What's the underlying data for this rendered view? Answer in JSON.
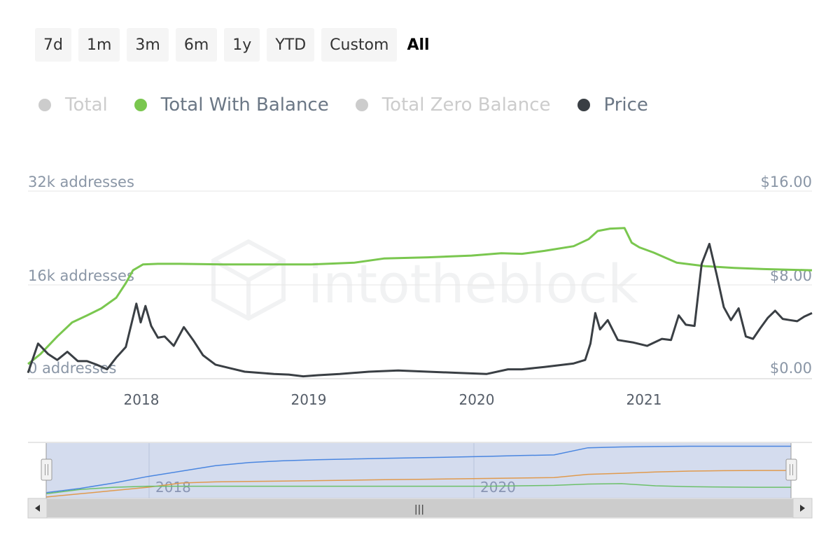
{
  "range_buttons": [
    "7d",
    "1m",
    "3m",
    "6m",
    "1y",
    "YTD",
    "Custom",
    "All"
  ],
  "active_range": "All",
  "legend": [
    {
      "label": "Total",
      "color": "#cccccc",
      "enabled": false
    },
    {
      "label": "Total With Balance",
      "color": "#7ac74f",
      "enabled": true
    },
    {
      "label": "Total Zero Balance",
      "color": "#cccccc",
      "enabled": false
    },
    {
      "label": "Price",
      "color": "#3a3f44",
      "enabled": true
    }
  ],
  "watermark": "intotheblock",
  "navigator": {
    "x_ticks": [
      "2018",
      "2020"
    ],
    "scroll_thumb": "|||"
  },
  "chart_data": {
    "type": "line",
    "title": "",
    "x_ticks": [
      "2018",
      "2019",
      "2020",
      "2021"
    ],
    "y_left": {
      "ticks": [
        "0 addresses",
        "16k addresses",
        "32k addresses"
      ],
      "range": [
        0,
        32000
      ]
    },
    "y_right": {
      "ticks": [
        "$0.00",
        "$8.00",
        "$16.00"
      ],
      "range": [
        0,
        16
      ]
    },
    "x_range": [
      "2017-05-20",
      "2021-11-10"
    ],
    "grid": true,
    "series": [
      {
        "name": "Total With Balance",
        "color": "#7ac74f",
        "axis": "left",
        "x": [
          "2017-05-20",
          "2017-06-15",
          "2017-07-20",
          "2017-08-20",
          "2017-09-20",
          "2017-10-20",
          "2017-11-20",
          "2017-12-10",
          "2017-12-25",
          "2018-01-15",
          "2018-02-15",
          "2018-04-01",
          "2018-07-01",
          "2018-10-01",
          "2019-01-01",
          "2019-04-01",
          "2019-06-01",
          "2019-09-01",
          "2019-12-01",
          "2020-02-01",
          "2020-03-15",
          "2020-05-01",
          "2020-07-01",
          "2020-08-01",
          "2020-08-20",
          "2020-09-15",
          "2020-10-15",
          "2020-10-30",
          "2020-11-15",
          "2020-12-15",
          "2021-02-01",
          "2021-04-01",
          "2021-06-01",
          "2021-08-01",
          "2021-11-10"
        ],
        "values": [
          2500,
          4200,
          7200,
          9600,
          10800,
          12000,
          13800,
          16300,
          18500,
          19500,
          19600,
          19600,
          19500,
          19500,
          19500,
          19800,
          20500,
          20700,
          21000,
          21400,
          21300,
          21800,
          22600,
          23800,
          25200,
          25600,
          25700,
          23200,
          22400,
          21500,
          19800,
          19200,
          18900,
          18700,
          18500
        ]
      },
      {
        "name": "Price",
        "color": "#3a3f44",
        "axis": "right",
        "x": [
          "2017-05-20",
          "2017-06-10",
          "2017-07-01",
          "2017-07-20",
          "2017-08-10",
          "2017-09-01",
          "2017-09-20",
          "2017-10-10",
          "2017-11-01",
          "2017-11-20",
          "2017-12-10",
          "2018-01-01",
          "2018-01-10",
          "2018-01-20",
          "2018-02-01",
          "2018-02-15",
          "2018-03-01",
          "2018-03-20",
          "2018-04-10",
          "2018-05-01",
          "2018-05-20",
          "2018-06-15",
          "2018-07-15",
          "2018-08-15",
          "2018-09-15",
          "2018-10-15",
          "2018-11-15",
          "2018-12-15",
          "2019-01-15",
          "2019-03-01",
          "2019-05-01",
          "2019-07-01",
          "2019-09-01",
          "2019-11-01",
          "2020-01-01",
          "2020-02-15",
          "2020-03-15",
          "2020-05-01",
          "2020-07-01",
          "2020-07-25",
          "2020-08-05",
          "2020-08-15",
          "2020-08-25",
          "2020-09-10",
          "2020-10-01",
          "2020-11-01",
          "2020-12-01",
          "2021-01-01",
          "2021-01-20",
          "2021-02-05",
          "2021-02-20",
          "2021-03-10",
          "2021-03-25",
          "2021-04-10",
          "2021-04-25",
          "2021-05-10",
          "2021-05-25",
          "2021-06-10",
          "2021-06-25",
          "2021-07-10",
          "2021-07-25",
          "2021-08-10",
          "2021-08-25",
          "2021-09-10",
          "2021-09-25",
          "2021-10-10",
          "2021-10-25",
          "2021-11-10"
        ],
        "values": [
          0.5,
          3.0,
          2.1,
          1.6,
          2.3,
          1.5,
          1.5,
          1.2,
          0.8,
          1.8,
          2.7,
          6.4,
          4.8,
          6.2,
          4.5,
          3.5,
          3.6,
          2.8,
          4.4,
          3.2,
          2.0,
          1.2,
          0.9,
          0.6,
          0.5,
          0.4,
          0.35,
          0.2,
          0.3,
          0.4,
          0.6,
          0.7,
          0.6,
          0.5,
          0.4,
          0.8,
          0.8,
          1.0,
          1.3,
          1.6,
          3.0,
          5.6,
          4.2,
          5.0,
          3.3,
          3.1,
          2.8,
          3.4,
          3.3,
          5.4,
          4.6,
          4.5,
          9.8,
          11.5,
          8.9,
          6.1,
          5.0,
          6.0,
          3.6,
          3.4,
          4.3,
          5.2,
          5.8,
          5.1,
          5.0,
          4.9,
          5.3,
          5.6
        ]
      }
    ]
  },
  "navigator_data": {
    "series": [
      {
        "name": "Total",
        "color": "#4a86e0",
        "values": [
          2000,
          4000,
          6500,
          9500,
          12000,
          14500,
          16000,
          16800,
          17300,
          17600,
          17900,
          18200,
          18500,
          18800,
          19200,
          19500,
          22800,
          23200,
          23400,
          23500,
          23500,
          23500,
          23500
        ]
      },
      {
        "name": "Total Zero Balance",
        "color": "#e09a4e",
        "values": [
          0,
          1500,
          3000,
          4500,
          6500,
          7000,
          7200,
          7400,
          7600,
          7800,
          8000,
          8200,
          8400,
          8600,
          8800,
          9000,
          10500,
          11000,
          11600,
          12000,
          12200,
          12300,
          12300
        ]
      },
      {
        "name": "Total With Balance",
        "color": "#6cc06a",
        "values": [
          1500,
          3500,
          4500,
          5000,
          5000,
          5000,
          5000,
          5000,
          5000,
          5000,
          5000,
          5000,
          5000,
          5000,
          5200,
          5400,
          6000,
          6200,
          5200,
          4800,
          4600,
          4500,
          4500
        ]
      }
    ]
  }
}
